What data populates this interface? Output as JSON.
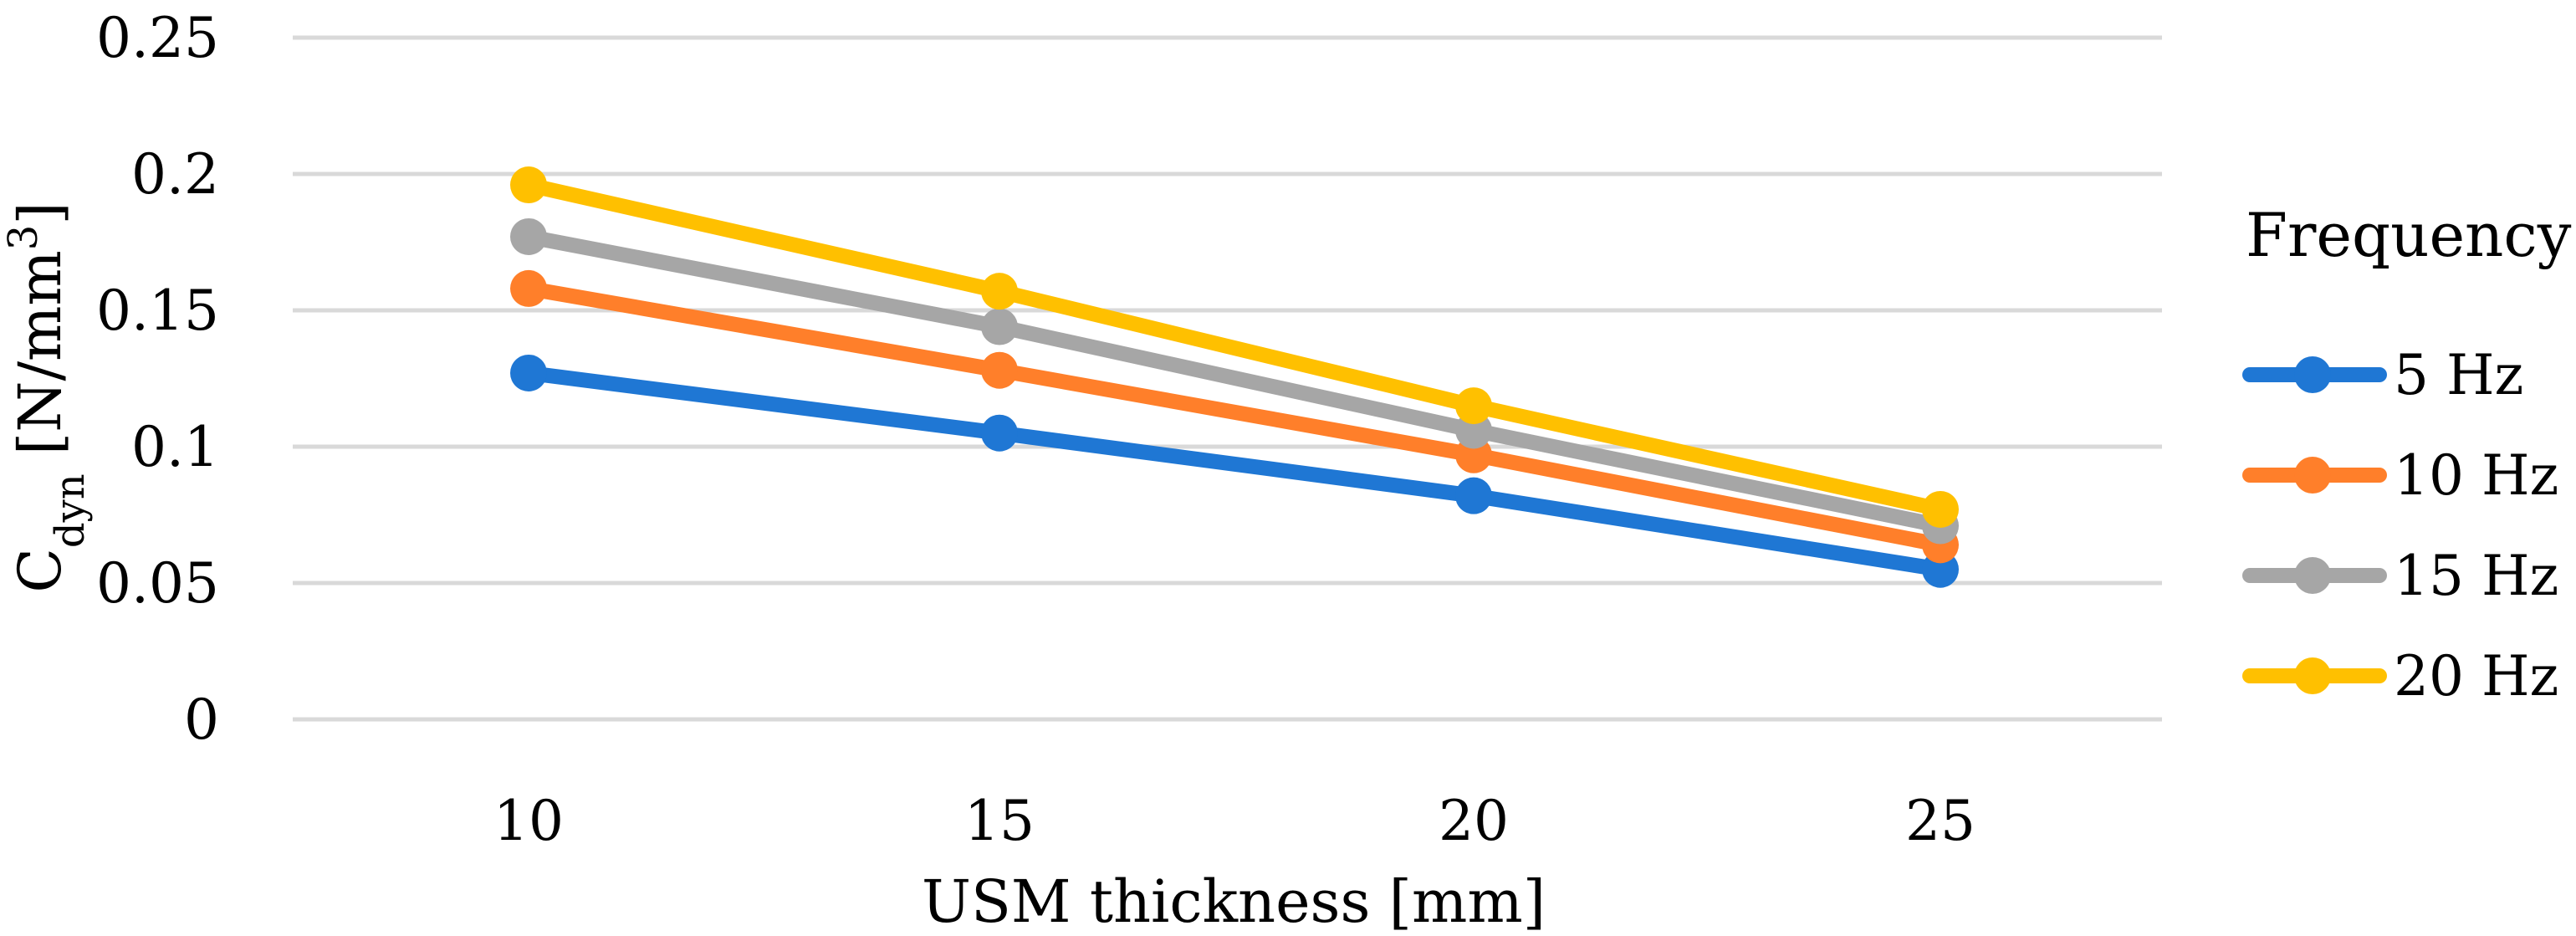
{
  "chart_data": {
    "type": "line",
    "title": "",
    "x": [
      10,
      15,
      20,
      25
    ],
    "categories": [
      "10",
      "15",
      "20",
      "25"
    ],
    "xlabel": "USM thickness [mm]",
    "ylabel": {
      "main": "C",
      "subscript": "dyn",
      "unit_prefix": " [N/mm",
      "superscript": "3",
      "unit_suffix": "]"
    },
    "ylim": [
      0,
      0.25
    ],
    "yticks": [
      "0",
      "0.05",
      "0.1",
      "0.15",
      "0.2",
      "0.25"
    ],
    "ytick_values": [
      0,
      0.05,
      0.1,
      0.15,
      0.2,
      0.25
    ],
    "grid": true,
    "legend_position": "right",
    "legend_title": "Frequency",
    "series": [
      {
        "name": "5 Hz",
        "color": "#1f77d4",
        "values": [
          0.127,
          0.105,
          0.082,
          0.055
        ]
      },
      {
        "name": "10 Hz",
        "color": "#ff7f2a",
        "values": [
          0.158,
          0.128,
          0.097,
          0.064
        ]
      },
      {
        "name": "15 Hz",
        "color": "#a6a6a6",
        "values": [
          0.177,
          0.144,
          0.106,
          0.071
        ]
      },
      {
        "name": "20 Hz",
        "color": "#ffc000",
        "values": [
          0.196,
          0.157,
          0.115,
          0.077
        ]
      }
    ]
  }
}
